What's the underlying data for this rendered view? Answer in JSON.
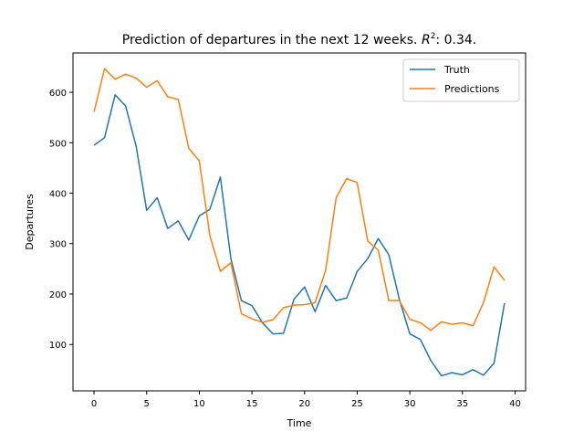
{
  "chart_data": {
    "type": "line",
    "title_prefix": "Prediction of departures in the next 12 weeks. ",
    "title_math_base": "R",
    "title_math_sup": "2",
    "title_suffix": ": 0.34.",
    "xlabel": "Time",
    "ylabel": "Departures",
    "xlim": [
      -2,
      41
    ],
    "ylim": [
      8,
      678
    ],
    "xticks": [
      0,
      5,
      10,
      15,
      20,
      25,
      30,
      35,
      40
    ],
    "yticks": [
      100,
      200,
      300,
      400,
      500,
      600
    ],
    "grid": false,
    "legend_placement": "top-right",
    "x": [
      0,
      1,
      2,
      3,
      4,
      5,
      6,
      7,
      8,
      9,
      10,
      11,
      12,
      13,
      14,
      15,
      16,
      17,
      18,
      19,
      20,
      21,
      22,
      23,
      24,
      25,
      26,
      27,
      28,
      29,
      30,
      31,
      32,
      33,
      34,
      35,
      36,
      37,
      38,
      39
    ],
    "series": [
      {
        "name": "Truth",
        "color": "#1f77b4",
        "values": [
          495,
          510,
          595,
          573,
          493,
          366,
          391,
          330,
          345,
          307,
          355,
          368,
          432,
          270,
          187,
          177,
          143,
          121,
          122,
          190,
          214,
          165,
          217,
          187,
          192,
          245,
          270,
          310,
          278,
          190,
          121,
          110,
          68,
          38,
          44,
          40,
          50,
          39,
          63,
          182
        ]
      },
      {
        "name": "Predictions",
        "color": "#ff7f0e",
        "values": [
          561,
          647,
          626,
          636,
          628,
          610,
          623,
          591,
          586,
          489,
          464,
          316,
          245,
          262,
          161,
          151,
          144,
          149,
          173,
          178,
          179,
          183,
          247,
          391,
          429,
          421,
          305,
          287,
          187,
          187,
          150,
          143,
          128,
          145,
          140,
          143,
          137,
          183,
          254,
          227
        ]
      }
    ]
  }
}
